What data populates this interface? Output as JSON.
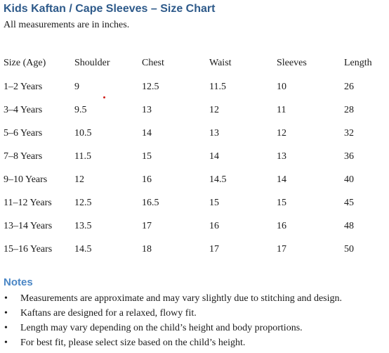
{
  "document": {
    "title": "Kids Kaftan / Cape Sleeves – Size Chart",
    "subtitle": "All measurements are in inches."
  },
  "table": {
    "headers": [
      "Size (Age)",
      "Shoulder",
      "Chest",
      "Waist",
      "Sleeves",
      "Length"
    ],
    "rows": [
      [
        "1–2 Years",
        "9",
        "12.5",
        "11.5",
        "10",
        "26"
      ],
      [
        "3–4 Years",
        "9.5",
        "13",
        "12",
        "11",
        "28"
      ],
      [
        "5–6 Years",
        "10.5",
        "14",
        "13",
        "12",
        "32"
      ],
      [
        "7–8 Years",
        "11.5",
        "15",
        "14",
        "13",
        "36"
      ],
      [
        "9–10 Years",
        "12",
        "16",
        "14.5",
        "14",
        "40"
      ],
      [
        "11–12 Years",
        "12.5",
        "16.5",
        "15",
        "15",
        "45"
      ],
      [
        "13–14 Years",
        "13.5",
        "17",
        "16",
        "16",
        "48"
      ],
      [
        "15–16 Years",
        "14.5",
        "18",
        "17",
        "17",
        "50"
      ]
    ]
  },
  "notes": {
    "heading": "Notes",
    "bullet": "•",
    "items": [
      "Measurements are approximate and may vary slightly due to stitching and design.",
      "Kaftans are designed for a relaxed, flowy fit.",
      "Length may vary depending on the child’s height and body proportions.",
      "For best fit, please select size based on the child’s height."
    ]
  },
  "colors": {
    "title": "#2e5a8a",
    "notes_heading": "#4a86c5",
    "stray_dot": "#d0201b"
  }
}
